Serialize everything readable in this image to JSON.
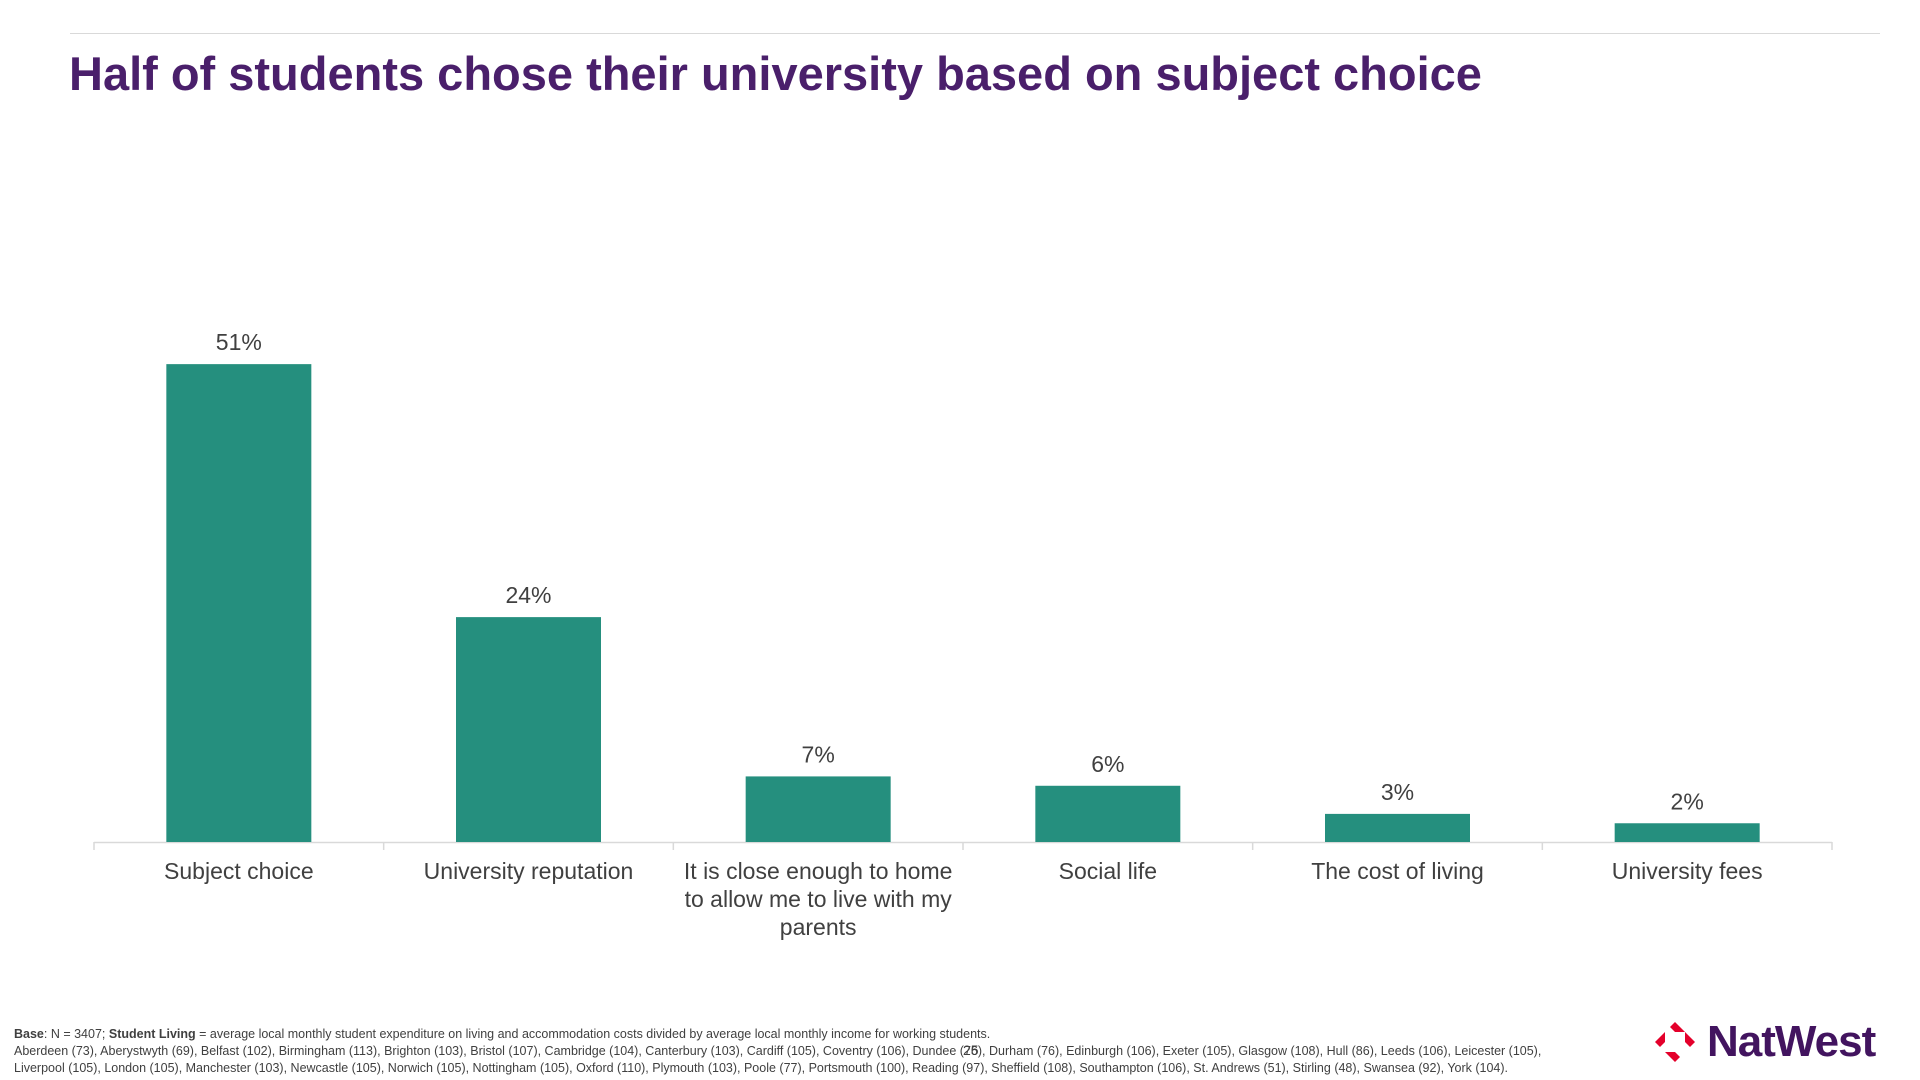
{
  "slide": {
    "title": "Half of students chose their university based on subject choice",
    "page_number": "25"
  },
  "footnote": {
    "base_label": "Base",
    "base_text": ": N = 3407;  ",
    "definition_label": "Student Living",
    "definition_text": " = average local monthly student expenditure on living and accommodation costs divided by average local monthly income for working students.",
    "cities_text": "Aberdeen (73), Aberystwyth (69), Belfast (102), Birmingham (113), Brighton (103), Bristol (107), Cambridge (104), Canterbury (103), Cardiff (105), Coventry (106), Dundee (76), Durham (76), Edinburgh (106), Exeter (105), Glasgow (108), Hull (86), Leeds (106), Leicester (105), Liverpool (105), London (105), Manchester (103), Newcastle (105), Norwich (105), Nottingham (105), Oxford (110), Plymouth (103), Poole (77), Portsmouth (100), Reading (97), Sheffield (108), Southampton (106), St. Andrews (51), Stirling (48), Swansea (92), York (104)."
  },
  "logo": {
    "text": "NatWest",
    "icon": "natwest-cubes-logo-icon",
    "color": "#42145f",
    "mark_color": "#e4002b"
  },
  "colors": {
    "title": "#4a1f6b",
    "bar": "#258f7e",
    "axis": "#d9d9d9",
    "label_text": "#404040"
  },
  "chart_data": {
    "type": "bar",
    "categories": [
      "Subject choice",
      "University reputation",
      "It is close enough to home to allow me to live with my parents",
      "Social life",
      "The cost of living",
      "University fees"
    ],
    "category_lines": [
      [
        "Subject choice"
      ],
      [
        "University reputation"
      ],
      [
        "It is close enough to home",
        "to allow me to live with my",
        "parents"
      ],
      [
        "Social life"
      ],
      [
        "The cost of living"
      ],
      [
        "University fees"
      ]
    ],
    "values": [
      51,
      24,
      7,
      6,
      3,
      2
    ],
    "value_labels": [
      "51%",
      "24%",
      "7%",
      "6%",
      "3%",
      "2%"
    ],
    "ylim": [
      0,
      60
    ],
    "grid": false,
    "legend": "none"
  }
}
